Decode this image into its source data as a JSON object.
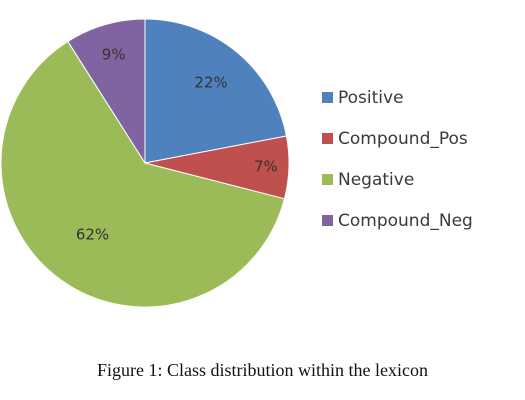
{
  "chart_data": {
    "type": "pie",
    "categories": [
      "Positive",
      "Compound_Pos",
      "Negative",
      "Compound_Neg"
    ],
    "values": [
      22,
      7,
      62,
      9
    ],
    "labels": [
      "22%",
      "7%",
      "62%",
      "9%"
    ],
    "colors": [
      "#4f81bd",
      "#c0504d",
      "#9bbb59",
      "#8064a2"
    ],
    "legend_position": "right",
    "start_angle": "top",
    "direction": "clockwise"
  },
  "caption": "Figure 1: Class distribution within the lexicon"
}
